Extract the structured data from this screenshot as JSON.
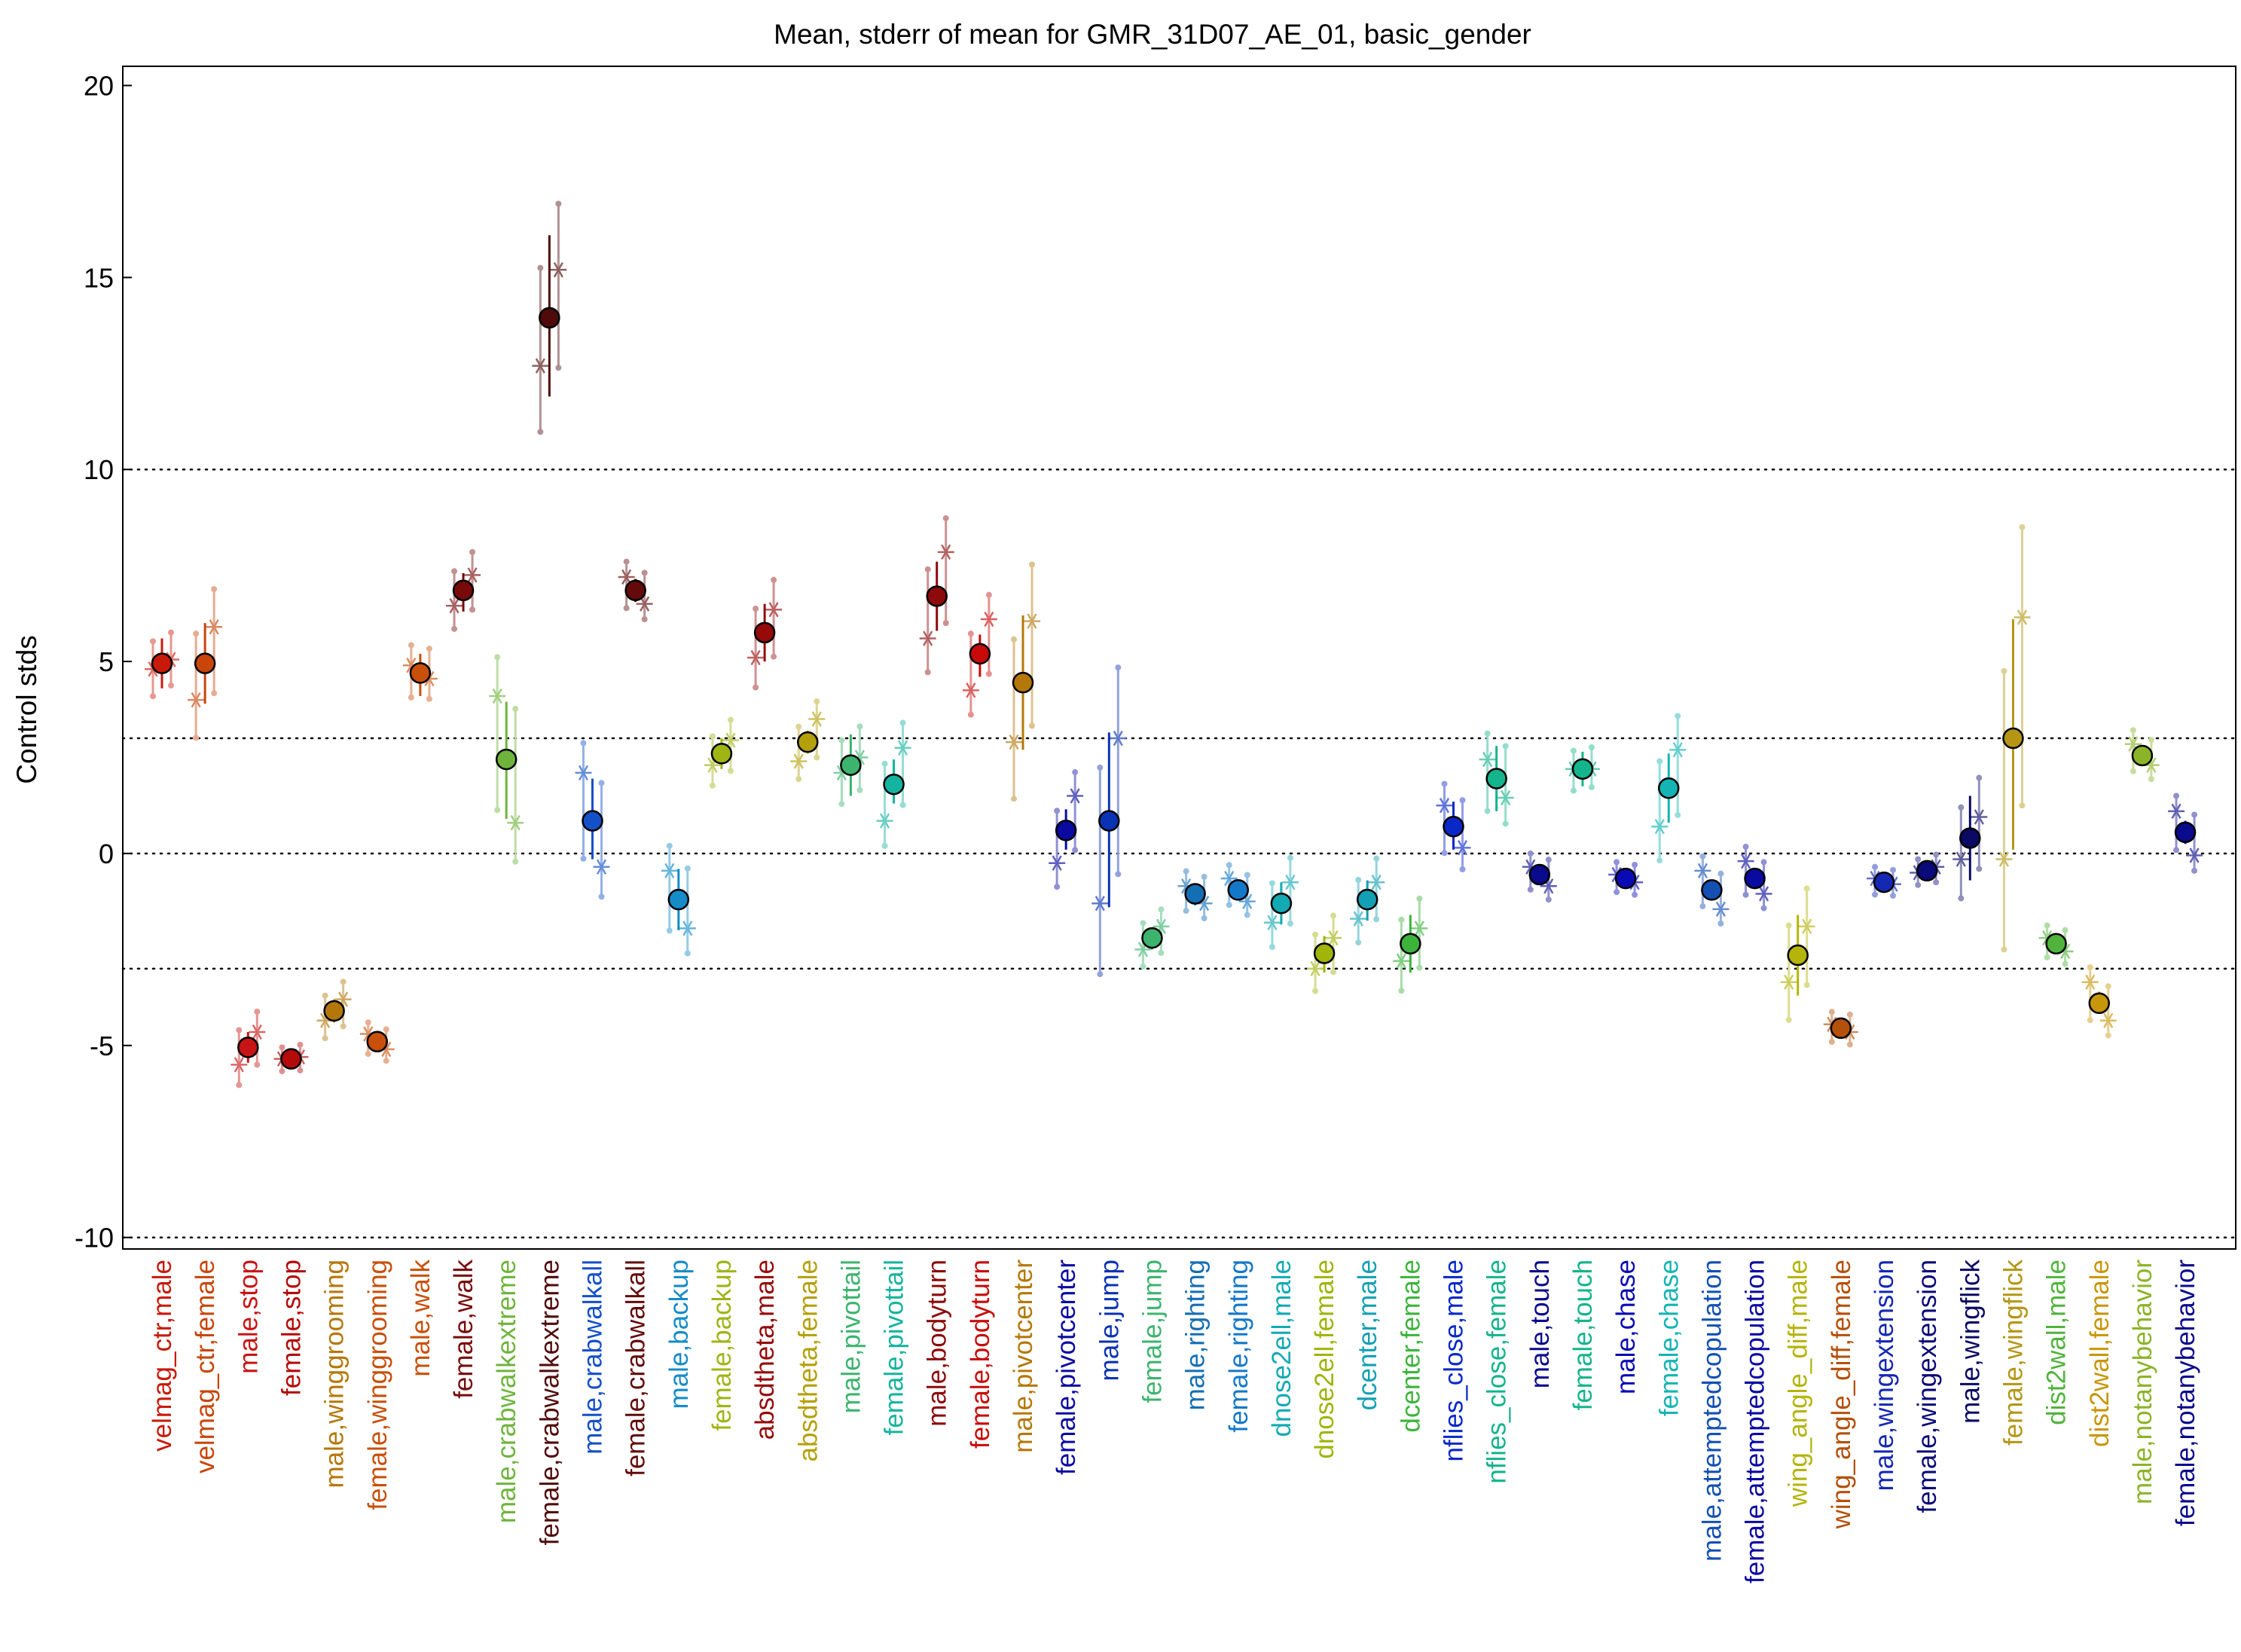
{
  "chart_data": {
    "type": "scatter",
    "title": "Mean, stderr of mean for GMR_31D07_AE_01, basic_gender",
    "xlabel": "",
    "ylabel": "Control stds",
    "ylim": [
      -10.3,
      20.5
    ],
    "yticks": [
      -10,
      -5,
      0,
      5,
      10,
      15,
      20
    ],
    "reference_lines": [
      -10,
      -3,
      0,
      3,
      10
    ],
    "grid": false,
    "legend": "none",
    "categories": [
      {
        "label": "velmag_ctr,male",
        "color": "#c81a0a",
        "mean": 4.95,
        "err_lo": 4.3,
        "err_hi": 5.6,
        "exp1": 4.8,
        "exp2": 5.05
      },
      {
        "label": "velmag_ctr,female",
        "color": "#c8460a",
        "mean": 4.95,
        "err_lo": 3.9,
        "err_hi": 6.0,
        "exp1": 4.0,
        "exp2": 5.9
      },
      {
        "label": "male,stop",
        "color": "#c81414",
        "mean": -5.05,
        "err_lo": -5.45,
        "err_hi": -4.65,
        "exp1": -5.5,
        "exp2": -4.65
      },
      {
        "label": "female,stop",
        "color": "#b40a0a",
        "mean": -5.35,
        "err_lo": -5.45,
        "err_hi": -5.25,
        "exp1": -5.35,
        "exp2": -5.3
      },
      {
        "label": "male,winggrooming",
        "color": "#b4780a",
        "mean": -4.1,
        "err_lo": -4.4,
        "err_hi": -3.8,
        "exp1": -4.35,
        "exp2": -3.8
      },
      {
        "label": "female,winggrooming",
        "color": "#c8500a",
        "mean": -4.9,
        "err_lo": -5.0,
        "err_hi": -4.8,
        "exp1": -4.7,
        "exp2": -5.1
      },
      {
        "label": "male,walk",
        "color": "#c8500a",
        "mean": 4.7,
        "err_lo": 4.1,
        "err_hi": 5.2,
        "exp1": 4.9,
        "exp2": 4.55
      },
      {
        "label": "female,walk",
        "color": "#780a0a",
        "mean": 6.85,
        "err_lo": 6.3,
        "err_hi": 7.3,
        "exp1": 6.45,
        "exp2": 7.25
      },
      {
        "label": "male,crabwalkextreme",
        "color": "#6eb43c",
        "mean": 2.45,
        "err_lo": 0.9,
        "err_hi": 3.95,
        "exp1": 4.1,
        "exp2": 0.8
      },
      {
        "label": "female,crabwalkextreme",
        "color": "#500a0a",
        "mean": 13.95,
        "err_lo": 11.9,
        "err_hi": 16.1,
        "exp1": 12.7,
        "exp2": 15.2
      },
      {
        "label": "male,crabwalkall",
        "color": "#1450c8",
        "mean": 0.85,
        "err_lo": -0.15,
        "err_hi": 1.95,
        "exp1": 2.1,
        "exp2": -0.35
      },
      {
        "label": "female,crabwalkall",
        "color": "#640a0a",
        "mean": 6.85,
        "err_lo": 6.55,
        "err_hi": 7.15,
        "exp1": 7.2,
        "exp2": 6.5
      },
      {
        "label": "male,backup",
        "color": "#148cc8",
        "mean": -1.2,
        "err_lo": -2.0,
        "err_hi": -0.4,
        "exp1": -0.45,
        "exp2": -1.95
      },
      {
        "label": "female,backup",
        "color": "#a0b414",
        "mean": 2.6,
        "err_lo": 2.2,
        "err_hi": 3.0,
        "exp1": 2.3,
        "exp2": 2.95
      },
      {
        "label": "absdtheta,male",
        "color": "#960a0a",
        "mean": 5.75,
        "err_lo": 5.0,
        "err_hi": 6.5,
        "exp1": 5.1,
        "exp2": 6.35
      },
      {
        "label": "absdtheta,female",
        "color": "#b4a00a",
        "mean": 2.9,
        "err_lo": 2.6,
        "err_hi": 3.2,
        "exp1": 2.4,
        "exp2": 3.5
      },
      {
        "label": "male,pivottail",
        "color": "#3cb46e",
        "mean": 2.3,
        "err_lo": 1.5,
        "err_hi": 3.1,
        "exp1": 2.1,
        "exp2": 2.5
      },
      {
        "label": "female,pivottail",
        "color": "#14b4a0",
        "mean": 1.8,
        "err_lo": 1.3,
        "err_hi": 2.45,
        "exp1": 0.85,
        "exp2": 2.75
      },
      {
        "label": "male,bodyturn",
        "color": "#8c0a0a",
        "mean": 6.7,
        "err_lo": 5.8,
        "err_hi": 7.6,
        "exp1": 5.6,
        "exp2": 7.85
      },
      {
        "label": "female,bodyturn",
        "color": "#c80a0a",
        "mean": 5.2,
        "err_lo": 4.6,
        "err_hi": 5.7,
        "exp1": 4.25,
        "exp2": 6.1
      },
      {
        "label": "male,pivotcenter",
        "color": "#b4780a",
        "mean": 4.45,
        "err_lo": 2.7,
        "err_hi": 6.2,
        "exp1": 2.9,
        "exp2": 6.05
      },
      {
        "label": "female,pivotcenter",
        "color": "#0a0aa0",
        "mean": 0.6,
        "err_lo": 0.1,
        "err_hi": 1.15,
        "exp1": -0.25,
        "exp2": 1.5
      },
      {
        "label": "male,jump",
        "color": "#0a32b4",
        "mean": 0.85,
        "err_lo": -1.4,
        "err_hi": 3.15,
        "exp1": -1.3,
        "exp2": 3.0
      },
      {
        "label": "female,jump",
        "color": "#3cb46e",
        "mean": -2.2,
        "err_lo": -2.5,
        "err_hi": -1.95,
        "exp1": -2.5,
        "exp2": -1.9
      },
      {
        "label": "male,righting",
        "color": "#146eb4",
        "mean": -1.05,
        "err_lo": -1.35,
        "err_hi": -0.8,
        "exp1": -0.85,
        "exp2": -1.3
      },
      {
        "label": "female,righting",
        "color": "#1478c8",
        "mean": -0.95,
        "err_lo": -1.15,
        "err_hi": -0.75,
        "exp1": -0.65,
        "exp2": -1.25
      },
      {
        "label": "dnose2ell,male",
        "color": "#14aab4",
        "mean": -1.3,
        "err_lo": -1.85,
        "err_hi": -0.75,
        "exp1": -1.8,
        "exp2": -0.75
      },
      {
        "label": "dnose2ell,female",
        "color": "#a0b40a",
        "mean": -2.6,
        "err_lo": -3.1,
        "err_hi": -2.15,
        "exp1": -3.0,
        "exp2": -2.2
      },
      {
        "label": "dcenter,male",
        "color": "#14a0b4",
        "mean": -1.2,
        "err_lo": -1.75,
        "err_hi": -0.7,
        "exp1": -1.7,
        "exp2": -0.75
      },
      {
        "label": "dcenter,female",
        "color": "#3cb43c",
        "mean": -2.35,
        "err_lo": -3.1,
        "err_hi": -1.6,
        "exp1": -2.8,
        "exp2": -1.95
      },
      {
        "label": "nflies_close,male",
        "color": "#0a28c8",
        "mean": 0.7,
        "err_lo": 0.1,
        "err_hi": 1.35,
        "exp1": 1.25,
        "exp2": 0.15
      },
      {
        "label": "nflies_close,female",
        "color": "#14b48c",
        "mean": 1.95,
        "err_lo": 1.1,
        "err_hi": 2.8,
        "exp1": 2.45,
        "exp2": 1.45
      },
      {
        "label": "male,touch",
        "color": "#0a0a8c",
        "mean": -0.55,
        "err_lo": -0.75,
        "err_hi": -0.35,
        "exp1": -0.35,
        "exp2": -0.85
      },
      {
        "label": "female,touch",
        "color": "#14b48c",
        "mean": 2.2,
        "err_lo": 1.75,
        "err_hi": 2.65,
        "exp1": 2.2,
        "exp2": 2.2
      },
      {
        "label": "male,chase",
        "color": "#0a0ab4",
        "mean": -0.65,
        "err_lo": -0.8,
        "err_hi": -0.5,
        "exp1": -0.55,
        "exp2": -0.75
      },
      {
        "label": "female,chase",
        "color": "#14b4b4",
        "mean": 1.7,
        "err_lo": 0.8,
        "err_hi": 2.6,
        "exp1": 0.7,
        "exp2": 2.7
      },
      {
        "label": "male,attemptedcopulation",
        "color": "#1450b4",
        "mean": -0.95,
        "err_lo": -1.2,
        "err_hi": -0.7,
        "exp1": -0.45,
        "exp2": -1.45
      },
      {
        "label": "female,attemptedcopulation",
        "color": "#0a0aa0",
        "mean": -0.65,
        "err_lo": -0.9,
        "err_hi": -0.4,
        "exp1": -0.2,
        "exp2": -1.05
      },
      {
        "label": "wing_angle_diff,male",
        "color": "#b4b40a",
        "mean": -2.65,
        "err_lo": -3.7,
        "err_hi": -1.6,
        "exp1": -3.35,
        "exp2": -1.9
      },
      {
        "label": "wing_angle_diff,female",
        "color": "#b4500a",
        "mean": -4.55,
        "err_lo": -4.7,
        "err_hi": -4.4,
        "exp1": -4.45,
        "exp2": -4.65
      },
      {
        "label": "male,wingextension",
        "color": "#1428b4",
        "mean": -0.75,
        "err_lo": -0.85,
        "err_hi": -0.65,
        "exp1": -0.65,
        "exp2": -0.8
      },
      {
        "label": "female,wingextension",
        "color": "#0a0a78",
        "mean": -0.45,
        "err_lo": -0.55,
        "err_hi": -0.35,
        "exp1": -0.5,
        "exp2": -0.35
      },
      {
        "label": "male,wingflick",
        "color": "#0a0a64",
        "mean": 0.4,
        "err_lo": -0.7,
        "err_hi": 1.5,
        "exp1": -0.15,
        "exp2": 0.95
      },
      {
        "label": "female,wingflick",
        "color": "#b49614",
        "mean": 3.0,
        "err_lo": 0.1,
        "err_hi": 6.1,
        "exp1": -0.15,
        "exp2": 6.15
      },
      {
        "label": "dist2wall,male",
        "color": "#50b43c",
        "mean": -2.35,
        "err_lo": -2.5,
        "err_hi": -2.2,
        "exp1": -2.2,
        "exp2": -2.55
      },
      {
        "label": "dist2wall,female",
        "color": "#c8960a",
        "mean": -3.9,
        "err_lo": -4.15,
        "err_hi": -3.6,
        "exp1": -3.35,
        "exp2": -4.35
      },
      {
        "label": "male,notanybehavior",
        "color": "#8cb428",
        "mean": 2.55,
        "err_lo": 2.35,
        "err_hi": 2.8,
        "exp1": 2.85,
        "exp2": 2.3
      },
      {
        "label": "female,notanybehavior",
        "color": "#0a0a8c",
        "mean": 0.55,
        "err_lo": 0.25,
        "err_hi": 0.85,
        "exp1": 1.1,
        "exp2": -0.05
      }
    ]
  }
}
